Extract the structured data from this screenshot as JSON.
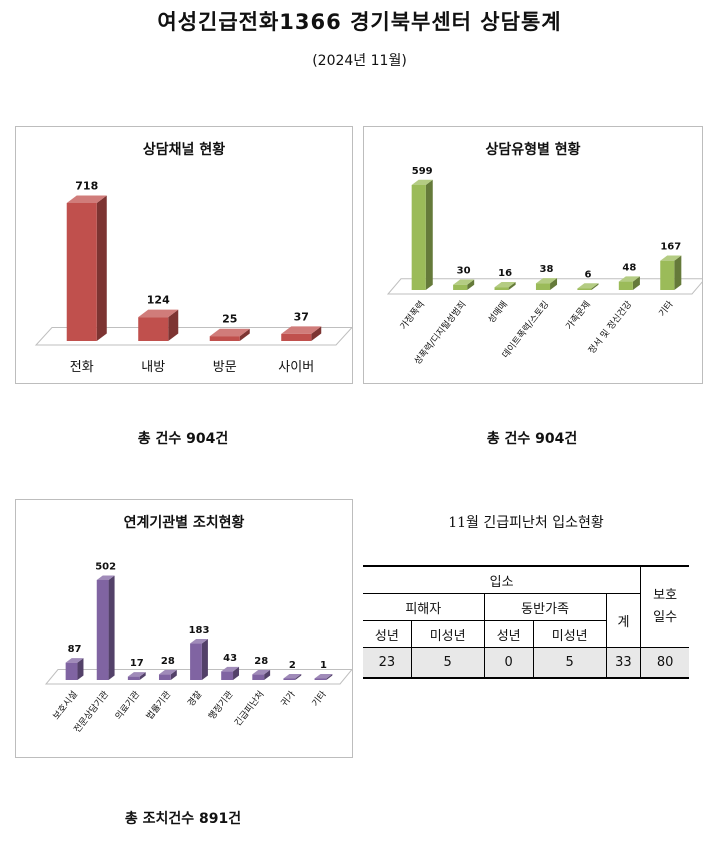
{
  "page": {
    "title": "여성긴급전화1366 경기북부센터 상담통계",
    "subtitle": "(2024년 11월)"
  },
  "chart_data": [
    {
      "type": "bar",
      "title": "상담채널 현황",
      "categories": [
        "전화",
        "내방",
        "방문",
        "사이버"
      ],
      "values": [
        718,
        124,
        25,
        37
      ],
      "color": "#c0504d",
      "footer": "총 건수 904건"
    },
    {
      "type": "bar",
      "title": "상담유형별 현황",
      "categories": [
        "가정폭력",
        "성폭력/디지털성범죄",
        "성매매",
        "데이트폭력/스토킹",
        "가족문제",
        "정서 및 정신건강",
        "기타"
      ],
      "values": [
        599,
        30,
        16,
        38,
        6,
        48,
        167
      ],
      "color": "#9bbb59",
      "footer": "총 건수 904건"
    },
    {
      "type": "bar",
      "title": "연계기관별 조치현황",
      "categories": [
        "보호시설",
        "전문상담기관",
        "의료기관",
        "법률기관",
        "경찰",
        "행정기관",
        "긴급피난처",
        "귀가",
        "기타"
      ],
      "values": [
        87,
        502,
        17,
        28,
        183,
        43,
        28,
        2,
        1
      ],
      "color": "#8064a2",
      "footer": "총 조치건수 891건"
    },
    {
      "type": "table",
      "title": "11월 긴급피난처 입소현황",
      "headers": {
        "admission": "입소",
        "victim": "피해자",
        "companion": "동반가족",
        "adult": "성년",
        "minor": "미성년",
        "total": "계",
        "protection_days": "보호\n일수"
      },
      "row": {
        "victim_adult": "23",
        "victim_minor": "5",
        "companion_adult": "0",
        "companion_minor": "5",
        "total": "33",
        "protection_days": "80"
      }
    }
  ]
}
